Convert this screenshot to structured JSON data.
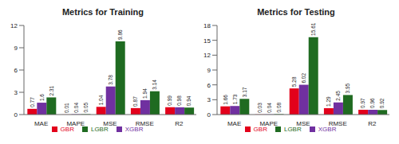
{
  "chart_data": [
    {
      "type": "bar",
      "title": "Metrics for Training",
      "categories": [
        "MAE",
        "MAPE",
        "MSE",
        "RMSE",
        "R2"
      ],
      "series": [
        {
          "name": "GBR",
          "color": "#e3001b",
          "values": [
            0.77,
            0.01,
            1.04,
            0.87,
            0.99
          ]
        },
        {
          "name": "XGBR",
          "color": "#7030a0",
          "values": [
            1.6,
            0.04,
            3.78,
            1.94,
            0.98
          ]
        },
        {
          "name": "LGBR",
          "color": "#1f6b21",
          "values": [
            2.31,
            0.05,
            9.86,
            3.14,
            0.94
          ]
        }
      ],
      "ylim": [
        0,
        12
      ],
      "yticks": [
        0,
        3,
        6,
        9,
        12
      ],
      "grid": false,
      "legend": "bottom",
      "data_labels": true
    },
    {
      "type": "bar",
      "title": "Metrics for Testing",
      "categories": [
        "MAE",
        "MAPE",
        "MSE",
        "RMSE",
        "R2"
      ],
      "series": [
        {
          "name": "GBR",
          "color": "#e3001b",
          "values": [
            1.66,
            0.03,
            5.28,
            1.29,
            0.97
          ]
        },
        {
          "name": "XGBR",
          "color": "#7030a0",
          "values": [
            1.73,
            0.04,
            6.02,
            2.45,
            0.96
          ]
        },
        {
          "name": "LGBR",
          "color": "#1f6b21",
          "values": [
            3.17,
            0.08,
            15.61,
            3.95,
            0.92
          ]
        }
      ],
      "ylim": [
        0,
        18
      ],
      "yticks": [
        0,
        3,
        6,
        9,
        12,
        15,
        18
      ],
      "grid": false,
      "legend": "bottom",
      "data_labels": true
    }
  ]
}
